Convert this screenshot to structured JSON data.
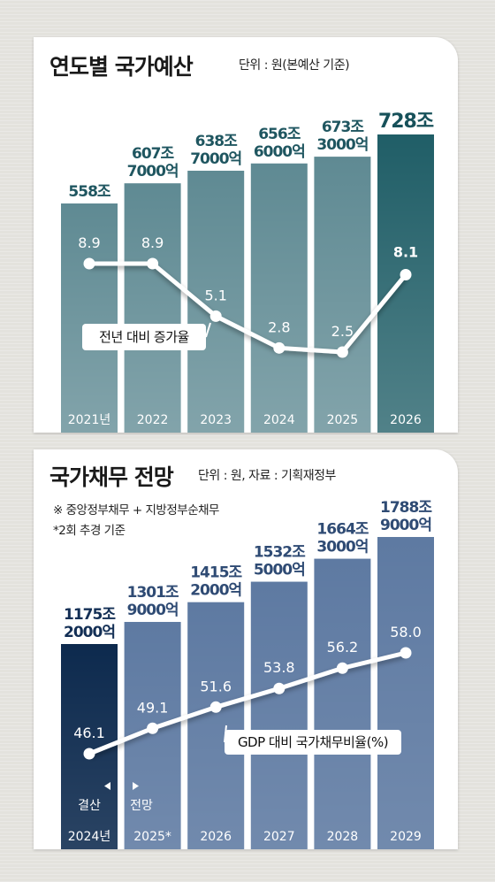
{
  "chart_data": [
    {
      "type": "bar",
      "title": "연도별 국가예산",
      "unit_note": "단위 : 원(본예산 기준)",
      "categories": [
        "2021년",
        "2022",
        "2023",
        "2024",
        "2025",
        "2026"
      ],
      "bar_labels": [
        [
          "558조"
        ],
        [
          "607조",
          "7000억"
        ],
        [
          "638조",
          "7000억"
        ],
        [
          "656조",
          "6000억"
        ],
        [
          "673조",
          "3000억"
        ],
        [
          "728조"
        ]
      ],
      "values": [
        558,
        607.7,
        638.7,
        656.6,
        673.3,
        728
      ],
      "colors": [
        "#5f8a93",
        "#5f8a93",
        "#5f8a93",
        "#5f8a93",
        "#5f8a93",
        "#205e67"
      ],
      "label_colors": [
        "#1f5660",
        "#1f5660",
        "#1f5660",
        "#1f5660",
        "#1f5660",
        "#17515a"
      ],
      "line": {
        "name": "전년 대비 증가율",
        "values": [
          8.9,
          8.9,
          5.1,
          2.8,
          2.5,
          8.1
        ],
        "value_labels": [
          "8.9",
          "8.9",
          "5.1",
          "2.8",
          "2.5",
          "8.1"
        ]
      }
    },
    {
      "type": "bar",
      "title": "국가채무 전망",
      "unit_note": "단위 : 원, 자료 : 기획재정부",
      "notes": [
        "※ 중앙정부채무 + 지방정부순채무",
        "*2회 추경 기준"
      ],
      "categories": [
        "2024년",
        "2025*",
        "2026",
        "2027",
        "2028",
        "2029"
      ],
      "bar_labels": [
        [
          "1175조",
          "2000억"
        ],
        [
          "1301조",
          "9000억"
        ],
        [
          "1415조",
          "2000억"
        ],
        [
          "1532조",
          "5000억"
        ],
        [
          "1664조",
          "3000억"
        ],
        [
          "1788조",
          "9000억"
        ]
      ],
      "values": [
        1175.2,
        1301.9,
        1415.2,
        1532.5,
        1664.3,
        1788.9
      ],
      "colors": [
        "#0d2a4e",
        "#5e7aa2",
        "#5e7aa2",
        "#5e7aa2",
        "#5e7aa2",
        "#5e7aa2"
      ],
      "label_colors": [
        "#132f55",
        "#2f4b74",
        "#2f4b74",
        "#2f4b74",
        "#2f4b74",
        "#2f4b74"
      ],
      "line": {
        "name": "GDP 대비 국가채무비율(%)",
        "values": [
          46.1,
          49.1,
          51.6,
          53.8,
          56.2,
          58.0
        ],
        "value_labels": [
          "46.1",
          "49.1",
          "51.6",
          "53.8",
          "56.2",
          "58.0"
        ]
      },
      "markers": [
        {
          "icon": "left-triangle-icon",
          "text": "결산"
        },
        {
          "icon": "right-triangle-icon",
          "text": "전망"
        }
      ]
    }
  ]
}
